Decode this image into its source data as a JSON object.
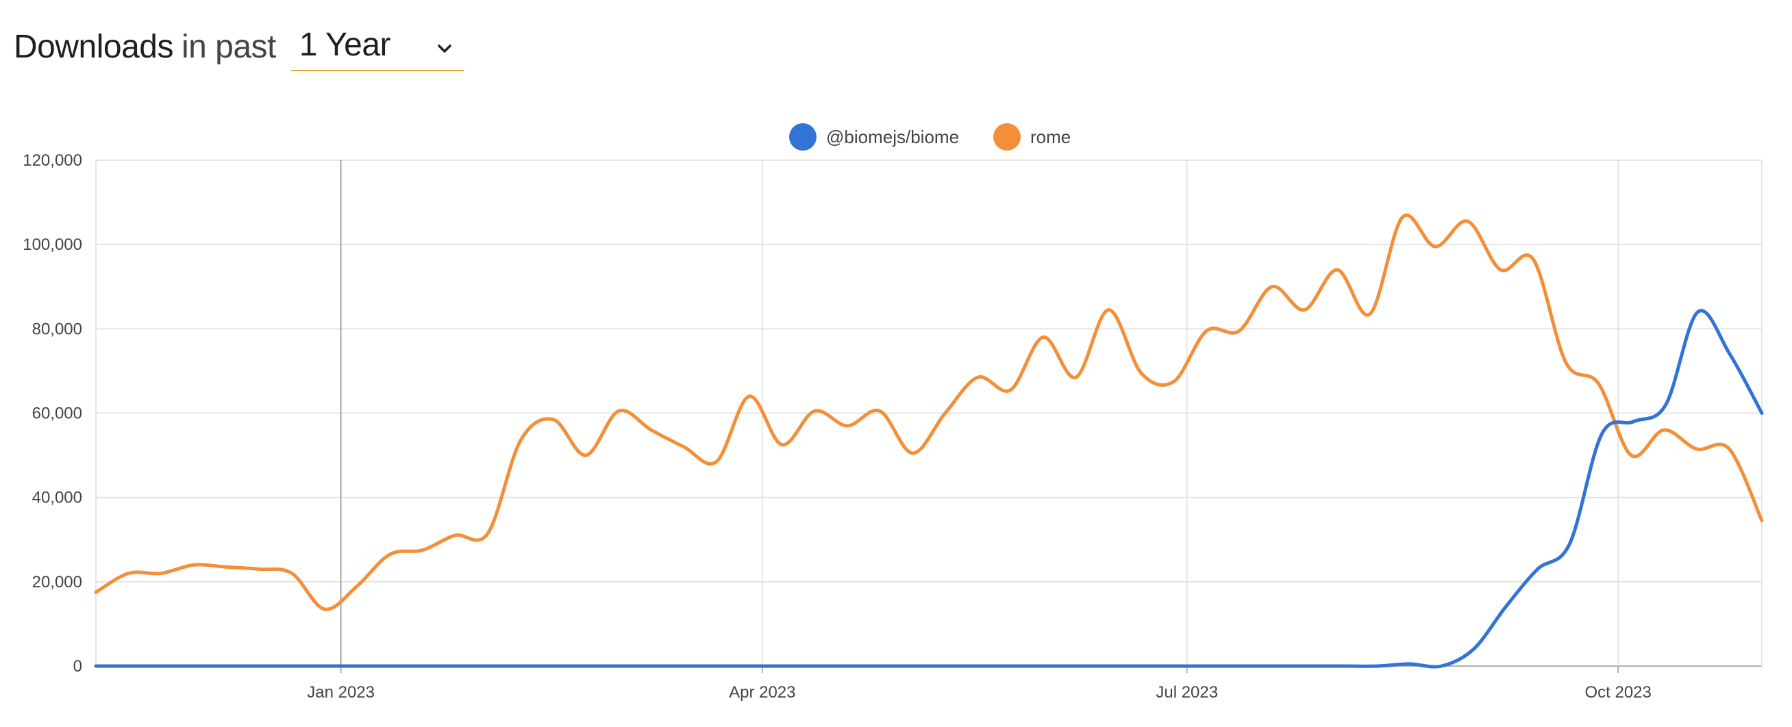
{
  "header": {
    "title_strong": "Downloads",
    "title_light": "in past",
    "range": "1 Year"
  },
  "colors": {
    "biome": "#3273d6",
    "rome": "#f28f38",
    "grid": "#dddddd",
    "axis": "#999999",
    "range_underline": "#f0a030"
  },
  "chart_data": {
    "type": "line",
    "xlabel": "",
    "ylabel": "",
    "ylim": [
      0,
      120000
    ],
    "yticks": [
      0,
      20000,
      40000,
      60000,
      80000,
      100000,
      120000
    ],
    "xticks": [
      {
        "label": "Jan 2023",
        "week": 7.5
      },
      {
        "label": "Apr 2023",
        "week": 20.4
      },
      {
        "label": "Jul 2023",
        "week": 33.4
      },
      {
        "label": "Oct 2023",
        "week": 46.6
      }
    ],
    "xlim": [
      0,
      51
    ],
    "legend_position": "top-center",
    "grid": true,
    "series": [
      {
        "name": "@biomejs/biome",
        "color_key": "biome",
        "values": [
          0,
          0,
          0,
          0,
          0,
          0,
          0,
          0,
          0,
          0,
          0,
          0,
          0,
          0,
          0,
          0,
          0,
          0,
          0,
          0,
          0,
          0,
          0,
          0,
          0,
          0,
          0,
          0,
          0,
          0,
          0,
          0,
          0,
          0,
          0,
          0,
          0,
          0,
          0,
          0,
          0,
          500,
          0,
          4000,
          14000,
          23000,
          29000,
          55000,
          58000,
          62000,
          84000,
          74000,
          60000
        ]
      },
      {
        "name": "rome",
        "color_key": "rome",
        "values": [
          17500,
          22000,
          22000,
          24000,
          23500,
          23000,
          22000,
          13500,
          19000,
          26500,
          27500,
          31000,
          31500,
          53500,
          58500,
          50000,
          60500,
          56000,
          52000,
          48500,
          64000,
          52500,
          60500,
          57000,
          60500,
          50500,
          60000,
          68500,
          65500,
          78000,
          68500,
          84500,
          69500,
          67500,
          79500,
          79500,
          90000,
          84500,
          94000,
          83500,
          106500,
          99500,
          105500,
          94000,
          96500,
          72000,
          67000,
          50000,
          56000,
          51500,
          51500,
          34500
        ]
      }
    ]
  }
}
